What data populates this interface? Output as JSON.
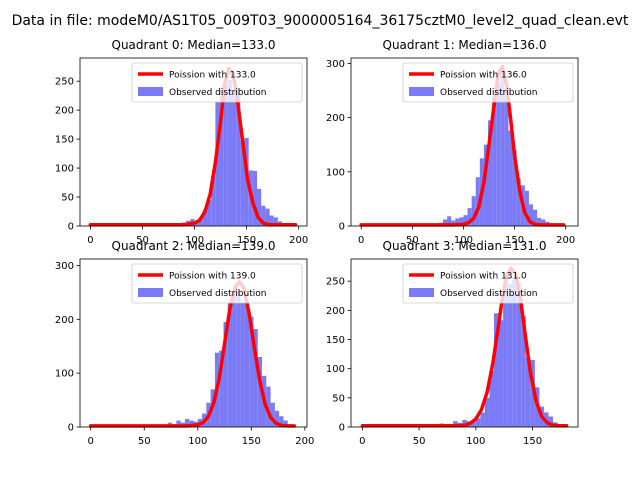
{
  "figure": {
    "suptitle": "Data in file: modeM0/AS1T05_009T03_9000005164_36175cztM0_level2_quad_clean.evt"
  },
  "colors": {
    "hist": "#7b7bf8",
    "fit": "#ff0000",
    "axis": "#000000",
    "legend_border": "#cccccc"
  },
  "legend_labels": {
    "fit": "Poission with {m}",
    "hist": "Observed distribution"
  },
  "chart_data": [
    {
      "type": "bar",
      "title": "Quadrant 0: Median=133.0",
      "median": 133.0,
      "fit_label": "Poission with 133.0",
      "xlim": [
        -10,
        208
      ],
      "ylim": [
        0,
        290
      ],
      "xticks": [
        0,
        50,
        100,
        150,
        200
      ],
      "yticks": [
        0,
        50,
        100,
        150,
        200,
        250
      ],
      "bins": [
        [
          0,
          4,
          2
        ],
        [
          4,
          8,
          2
        ],
        [
          8,
          12,
          2
        ],
        [
          12,
          16,
          2
        ],
        [
          16,
          20,
          2
        ],
        [
          20,
          24,
          2
        ],
        [
          24,
          28,
          2
        ],
        [
          28,
          32,
          2
        ],
        [
          32,
          36,
          2
        ],
        [
          36,
          40,
          2
        ],
        [
          40,
          44,
          2
        ],
        [
          44,
          48,
          2
        ],
        [
          48,
          52,
          2
        ],
        [
          52,
          56,
          2
        ],
        [
          56,
          60,
          2
        ],
        [
          60,
          64,
          2
        ],
        [
          64,
          68,
          2
        ],
        [
          68,
          72,
          3
        ],
        [
          72,
          76,
          3
        ],
        [
          76,
          80,
          3
        ],
        [
          80,
          84,
          3
        ],
        [
          84,
          88,
          4
        ],
        [
          88,
          92,
          6
        ],
        [
          92,
          96,
          9
        ],
        [
          96,
          100,
          12
        ],
        [
          100,
          104,
          8
        ],
        [
          104,
          108,
          12
        ],
        [
          108,
          112,
          28
        ],
        [
          112,
          116,
          45
        ],
        [
          116,
          120,
          86
        ],
        [
          120,
          124,
          215
        ],
        [
          124,
          128,
          239
        ],
        [
          128,
          132,
          244
        ],
        [
          132,
          136,
          252
        ],
        [
          136,
          140,
          231
        ],
        [
          140,
          144,
          238
        ],
        [
          144,
          148,
          148
        ],
        [
          148,
          152,
          152
        ],
        [
          152,
          156,
          96
        ],
        [
          156,
          160,
          95
        ],
        [
          160,
          164,
          64
        ],
        [
          164,
          168,
          35
        ],
        [
          168,
          172,
          30
        ],
        [
          172,
          176,
          18
        ],
        [
          176,
          180,
          15
        ],
        [
          180,
          184,
          8
        ],
        [
          184,
          188,
          5
        ],
        [
          188,
          192,
          3
        ],
        [
          192,
          196,
          2
        ]
      ],
      "fit_x": [
        0,
        80,
        90,
        100,
        105,
        110,
        115,
        120,
        125,
        129,
        133,
        137,
        141,
        146,
        151,
        156,
        161,
        166,
        171,
        176,
        186,
        197
      ],
      "fit_y": [
        2,
        2,
        2.5,
        5,
        10,
        25,
        55,
        110,
        180,
        245,
        272,
        262,
        220,
        150,
        80,
        40,
        15,
        5,
        2.5,
        2,
        2,
        2
      ]
    },
    {
      "type": "bar",
      "title": "Quadrant 1: Median=136.0",
      "median": 136.0,
      "fit_label": "Poission with 136.0",
      "xlim": [
        -10,
        212
      ],
      "ylim": [
        0,
        310
      ],
      "xticks": [
        0,
        50,
        100,
        150,
        200
      ],
      "yticks": [
        0,
        100,
        200,
        300
      ],
      "bins": [
        [
          0,
          4,
          2
        ],
        [
          4,
          8,
          2
        ],
        [
          8,
          12,
          2
        ],
        [
          12,
          16,
          2
        ],
        [
          16,
          20,
          2
        ],
        [
          20,
          24,
          2
        ],
        [
          24,
          28,
          2
        ],
        [
          28,
          32,
          2
        ],
        [
          32,
          36,
          2
        ],
        [
          36,
          40,
          2
        ],
        [
          40,
          44,
          2
        ],
        [
          44,
          48,
          2
        ],
        [
          48,
          52,
          2
        ],
        [
          52,
          56,
          2
        ],
        [
          56,
          60,
          2
        ],
        [
          60,
          64,
          2
        ],
        [
          64,
          68,
          2
        ],
        [
          68,
          72,
          3
        ],
        [
          72,
          76,
          4
        ],
        [
          76,
          80,
          6
        ],
        [
          80,
          84,
          12
        ],
        [
          84,
          88,
          18
        ],
        [
          88,
          92,
          10
        ],
        [
          92,
          96,
          14
        ],
        [
          96,
          100,
          16
        ],
        [
          100,
          104,
          20
        ],
        [
          104,
          108,
          33
        ],
        [
          108,
          112,
          55
        ],
        [
          112,
          116,
          90
        ],
        [
          116,
          120,
          125
        ],
        [
          120,
          124,
          150
        ],
        [
          124,
          128,
          195
        ],
        [
          128,
          132,
          239
        ],
        [
          132,
          136,
          266
        ],
        [
          136,
          140,
          285
        ],
        [
          140,
          144,
          250
        ],
        [
          144,
          148,
          176
        ],
        [
          148,
          152,
          140
        ],
        [
          152,
          156,
          88
        ],
        [
          156,
          160,
          75
        ],
        [
          160,
          164,
          65
        ],
        [
          164,
          168,
          40
        ],
        [
          168,
          172,
          30
        ],
        [
          172,
          176,
          15
        ],
        [
          176,
          180,
          12
        ],
        [
          180,
          184,
          8
        ],
        [
          184,
          188,
          5
        ],
        [
          188,
          192,
          3
        ],
        [
          192,
          196,
          2
        ],
        [
          196,
          200,
          2
        ]
      ],
      "fit_x": [
        0,
        80,
        90,
        100,
        105,
        110,
        115,
        120,
        125,
        130,
        134,
        138,
        142,
        146,
        150,
        155,
        160,
        165,
        170,
        175,
        185,
        198
      ],
      "fit_y": [
        2,
        2,
        2,
        3,
        6,
        14,
        35,
        80,
        150,
        225,
        280,
        294,
        262,
        200,
        130,
        65,
        25,
        8,
        3,
        2,
        2,
        2
      ]
    },
    {
      "type": "bar",
      "title": "Quadrant 2: Median=139.0",
      "median": 139.0,
      "fit_label": "Poission with 139.0",
      "xlim": [
        -10,
        202
      ],
      "ylim": [
        0,
        312
      ],
      "xticks": [
        0,
        50,
        100,
        150,
        200
      ],
      "yticks": [
        0,
        100,
        200,
        300
      ],
      "bins": [
        [
          0,
          4,
          2
        ],
        [
          4,
          8,
          2
        ],
        [
          8,
          12,
          2
        ],
        [
          12,
          16,
          2
        ],
        [
          16,
          20,
          2
        ],
        [
          20,
          24,
          2
        ],
        [
          24,
          28,
          2
        ],
        [
          28,
          32,
          2
        ],
        [
          32,
          36,
          2
        ],
        [
          36,
          40,
          2
        ],
        [
          40,
          44,
          2
        ],
        [
          44,
          48,
          2
        ],
        [
          48,
          52,
          2
        ],
        [
          52,
          56,
          2
        ],
        [
          56,
          60,
          2
        ],
        [
          60,
          64,
          4
        ],
        [
          64,
          68,
          3
        ],
        [
          68,
          72,
          2
        ],
        [
          72,
          76,
          8
        ],
        [
          76,
          80,
          5
        ],
        [
          80,
          84,
          12
        ],
        [
          84,
          88,
          8
        ],
        [
          88,
          92,
          15
        ],
        [
          92,
          96,
          12
        ],
        [
          96,
          100,
          10
        ],
        [
          100,
          104,
          15
        ],
        [
          104,
          108,
          25
        ],
        [
          108,
          112,
          45
        ],
        [
          112,
          116,
          70
        ],
        [
          116,
          120,
          138
        ],
        [
          120,
          124,
          142
        ],
        [
          124,
          128,
          195
        ],
        [
          128,
          132,
          232
        ],
        [
          132,
          136,
          245
        ],
        [
          136,
          140,
          255
        ],
        [
          140,
          144,
          232
        ],
        [
          144,
          148,
          232
        ],
        [
          148,
          152,
          205
        ],
        [
          152,
          156,
          182
        ],
        [
          156,
          160,
          130
        ],
        [
          160,
          164,
          95
        ],
        [
          164,
          168,
          75
        ],
        [
          168,
          172,
          45
        ],
        [
          172,
          176,
          30
        ],
        [
          176,
          180,
          20
        ],
        [
          180,
          184,
          12
        ],
        [
          184,
          188,
          5
        ],
        [
          188,
          192,
          3
        ]
      ],
      "fit_x": [
        0,
        80,
        90,
        100,
        105,
        110,
        115,
        120,
        125,
        130,
        135,
        139,
        143,
        148,
        153,
        158,
        163,
        168,
        173,
        178,
        184,
        190
      ],
      "fit_y": [
        2,
        2,
        2,
        4,
        8,
        20,
        45,
        90,
        155,
        220,
        260,
        270,
        258,
        210,
        145,
        85,
        42,
        18,
        7,
        3,
        2,
        2
      ]
    },
    {
      "type": "bar",
      "title": "Quadrant 3: Median=131.0",
      "median": 131.0,
      "fit_label": "Poission with 131.0",
      "xlim": [
        -10,
        190
      ],
      "ylim": [
        0,
        288
      ],
      "xticks": [
        0,
        50,
        100,
        150
      ],
      "yticks": [
        0,
        50,
        100,
        150,
        200,
        250
      ],
      "bins": [
        [
          0,
          4,
          3
        ],
        [
          4,
          8,
          2
        ],
        [
          8,
          12,
          2
        ],
        [
          12,
          16,
          2
        ],
        [
          16,
          20,
          2
        ],
        [
          20,
          24,
          2
        ],
        [
          24,
          28,
          2
        ],
        [
          28,
          32,
          2
        ],
        [
          32,
          36,
          2
        ],
        [
          36,
          40,
          2
        ],
        [
          40,
          44,
          2
        ],
        [
          44,
          48,
          2
        ],
        [
          48,
          52,
          2
        ],
        [
          52,
          56,
          2
        ],
        [
          56,
          60,
          2
        ],
        [
          60,
          64,
          2
        ],
        [
          64,
          68,
          2
        ],
        [
          68,
          72,
          6
        ],
        [
          72,
          76,
          3
        ],
        [
          76,
          80,
          4
        ],
        [
          80,
          84,
          10
        ],
        [
          84,
          88,
          7
        ],
        [
          88,
          92,
          12
        ],
        [
          92,
          96,
          10
        ],
        [
          96,
          100,
          12
        ],
        [
          100,
          104,
          15
        ],
        [
          104,
          108,
          25
        ],
        [
          108,
          112,
          50
        ],
        [
          112,
          116,
          96
        ],
        [
          116,
          120,
          195
        ],
        [
          120,
          124,
          183
        ],
        [
          124,
          128,
          250
        ],
        [
          128,
          132,
          245
        ],
        [
          132,
          136,
          252
        ],
        [
          136,
          140,
          248
        ],
        [
          140,
          144,
          190
        ],
        [
          144,
          148,
          120
        ],
        [
          148,
          152,
          115
        ],
        [
          152,
          156,
          68
        ],
        [
          156,
          160,
          35
        ],
        [
          160,
          164,
          25
        ],
        [
          164,
          168,
          18
        ],
        [
          168,
          172,
          8
        ],
        [
          172,
          176,
          5
        ],
        [
          176,
          180,
          2
        ]
      ],
      "fit_x": [
        0,
        70,
        80,
        90,
        95,
        100,
        105,
        110,
        115,
        120,
        124,
        128,
        131,
        135,
        139,
        143,
        148,
        153,
        158,
        163,
        168,
        174,
        180
      ],
      "fit_y": [
        2,
        2,
        2,
        3,
        6,
        14,
        30,
        60,
        110,
        175,
        230,
        262,
        272,
        262,
        225,
        165,
        95,
        45,
        18,
        7,
        3,
        2,
        2
      ]
    }
  ]
}
